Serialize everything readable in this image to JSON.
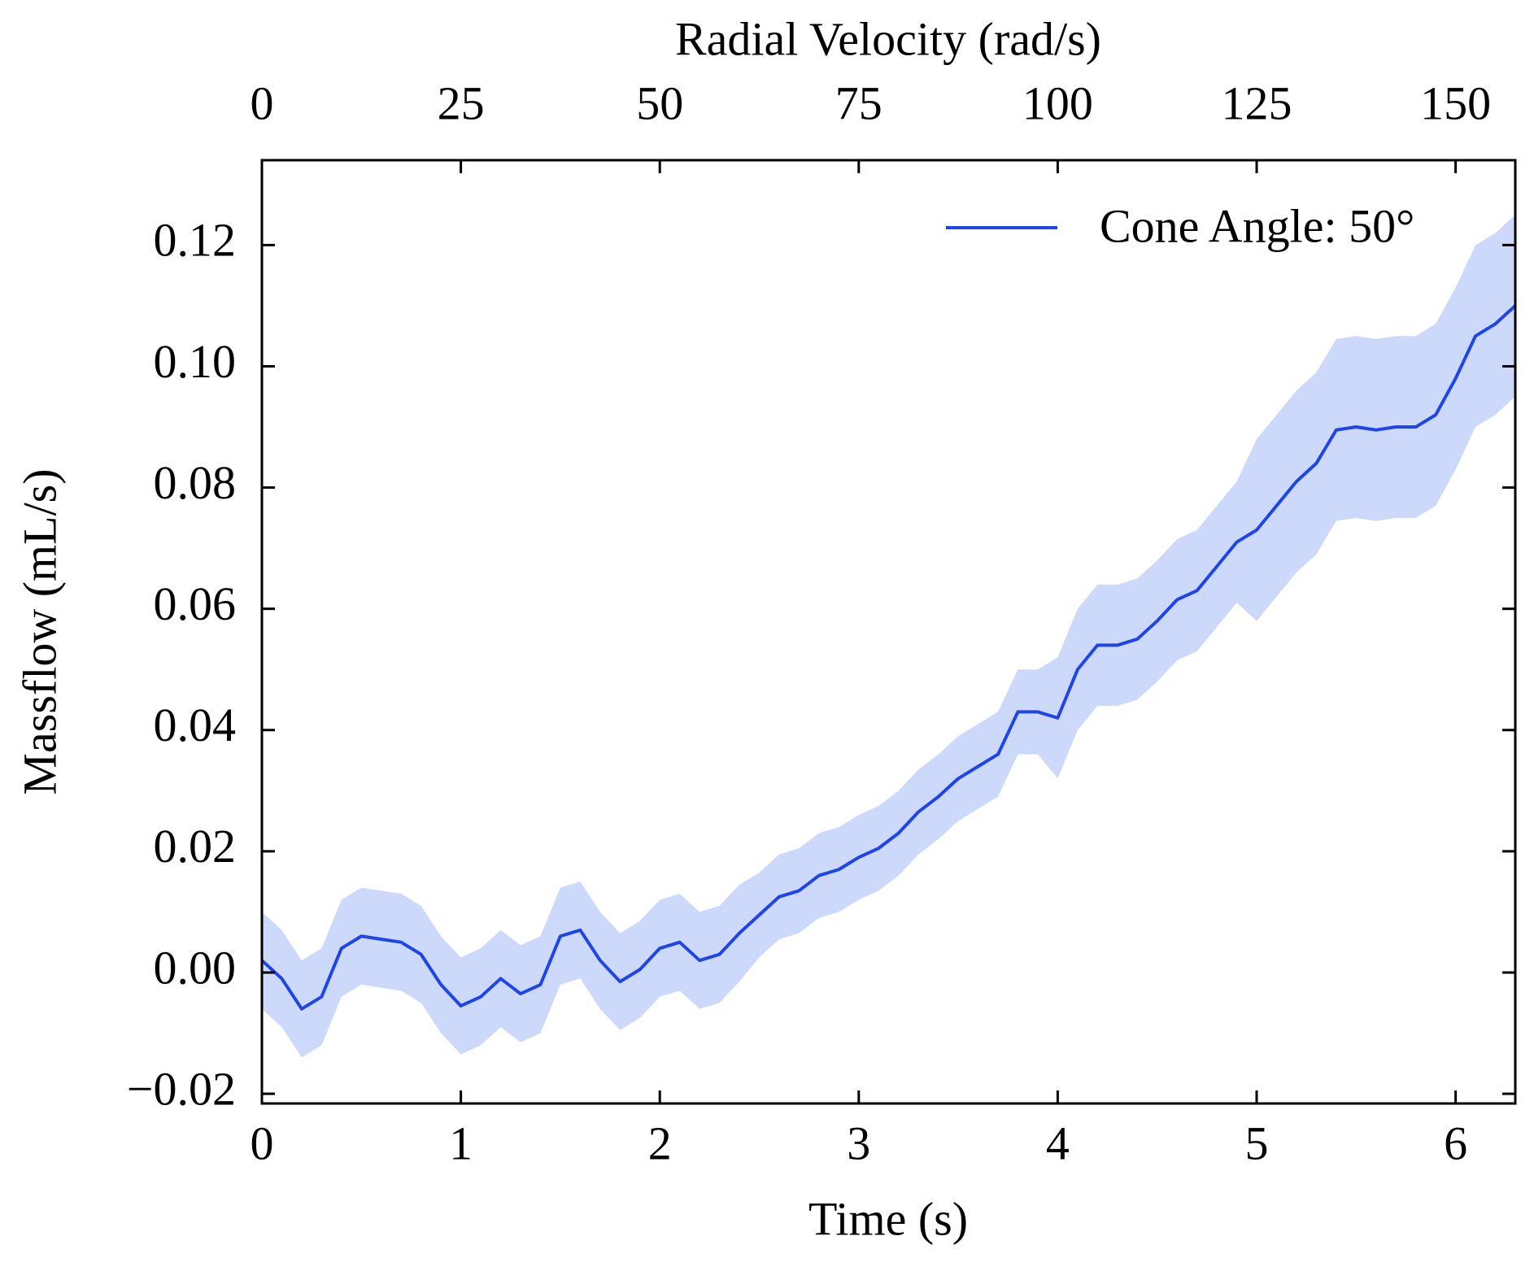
{
  "chart_data": {
    "type": "line",
    "xlabel": "Time (s)",
    "ylabel": "Massflow (mL/s)",
    "x2label": "Radial Velocity (rad/s)",
    "x": [
      0,
      0.1,
      0.2,
      0.3,
      0.4,
      0.5,
      0.6,
      0.7,
      0.8,
      0.9,
      1.0,
      1.1,
      1.2,
      1.3,
      1.4,
      1.5,
      1.6,
      1.7,
      1.8,
      1.9,
      2.0,
      2.1,
      2.2,
      2.3,
      2.4,
      2.5,
      2.6,
      2.7,
      2.8,
      2.9,
      3.0,
      3.1,
      3.2,
      3.3,
      3.4,
      3.5,
      3.6,
      3.7,
      3.8,
      3.9,
      4.0,
      4.1,
      4.2,
      4.3,
      4.4,
      4.5,
      4.6,
      4.7,
      4.8,
      4.9,
      5.0,
      5.1,
      5.2,
      5.3,
      5.4,
      5.5,
      5.6,
      5.7,
      5.8,
      5.9,
      6.0,
      6.1,
      6.2,
      6.3
    ],
    "series": [
      {
        "name": "Cone Angle: 50°",
        "color": "#1f45e8",
        "band_color": "#cdd9fb",
        "values": [
          0.002,
          -0.001,
          -0.006,
          -0.004,
          0.004,
          0.006,
          0.0055,
          0.005,
          0.003,
          -0.002,
          -0.0055,
          -0.004,
          -0.001,
          -0.0035,
          -0.002,
          0.006,
          0.007,
          0.002,
          -0.0015,
          0.0005,
          0.004,
          0.005,
          0.002,
          0.003,
          0.0065,
          0.0095,
          0.0125,
          0.0135,
          0.016,
          0.017,
          0.019,
          0.0205,
          0.023,
          0.0265,
          0.029,
          0.032,
          0.034,
          0.036,
          0.043,
          0.043,
          0.042,
          0.05,
          0.054,
          0.054,
          0.055,
          0.058,
          0.0615,
          0.063,
          0.067,
          0.071,
          0.073,
          0.077,
          0.081,
          0.084,
          0.0895,
          0.09,
          0.0895,
          0.09,
          0.09,
          0.092,
          0.098,
          0.105,
          0.107,
          0.11
        ],
        "upper": [
          0.01,
          0.007,
          0.002,
          0.004,
          0.012,
          0.014,
          0.0135,
          0.013,
          0.011,
          0.006,
          0.0025,
          0.004,
          0.007,
          0.0045,
          0.006,
          0.014,
          0.015,
          0.01,
          0.0065,
          0.0085,
          0.012,
          0.013,
          0.01,
          0.011,
          0.0145,
          0.0165,
          0.0195,
          0.0205,
          0.023,
          0.024,
          0.026,
          0.0275,
          0.03,
          0.0335,
          0.036,
          0.039,
          0.041,
          0.043,
          0.05,
          0.05,
          0.052,
          0.06,
          0.064,
          0.064,
          0.065,
          0.068,
          0.0715,
          0.073,
          0.077,
          0.081,
          0.088,
          0.092,
          0.096,
          0.099,
          0.1045,
          0.105,
          0.1045,
          0.105,
          0.105,
          0.107,
          0.113,
          0.12,
          0.122,
          0.125
        ],
        "lower": [
          -0.006,
          -0.009,
          -0.014,
          -0.012,
          -0.004,
          -0.002,
          -0.0025,
          -0.003,
          -0.005,
          -0.01,
          -0.0135,
          -0.012,
          -0.009,
          -0.0115,
          -0.01,
          -0.002,
          -0.001,
          -0.006,
          -0.0095,
          -0.0075,
          -0.004,
          -0.003,
          -0.006,
          -0.005,
          -0.0015,
          0.0025,
          0.0055,
          0.0065,
          0.009,
          0.01,
          0.012,
          0.0135,
          0.016,
          0.0195,
          0.022,
          0.025,
          0.027,
          0.029,
          0.036,
          0.036,
          0.032,
          0.04,
          0.044,
          0.044,
          0.045,
          0.048,
          0.0515,
          0.053,
          0.057,
          0.061,
          0.058,
          0.062,
          0.066,
          0.069,
          0.0745,
          0.075,
          0.0745,
          0.075,
          0.075,
          0.077,
          0.083,
          0.09,
          0.092,
          0.095
        ]
      }
    ],
    "xlim": [
      0,
      6.3
    ],
    "xticks": [
      0,
      1,
      2,
      3,
      4,
      5,
      6
    ],
    "x2lim": [
      0,
      157.5
    ],
    "x2ticks": [
      0,
      25,
      50,
      75,
      100,
      125,
      150
    ],
    "ylim": [
      -0.0216,
      0.134
    ],
    "yticks": [
      {
        "value": -0.02,
        "label": "−0.02"
      },
      {
        "value": 0,
        "label": "0.00"
      },
      0.02,
      0.04,
      0.06,
      0.08,
      {
        "value": 0.1,
        "label": "0.10"
      },
      0.12
    ],
    "legend": "upper right"
  }
}
